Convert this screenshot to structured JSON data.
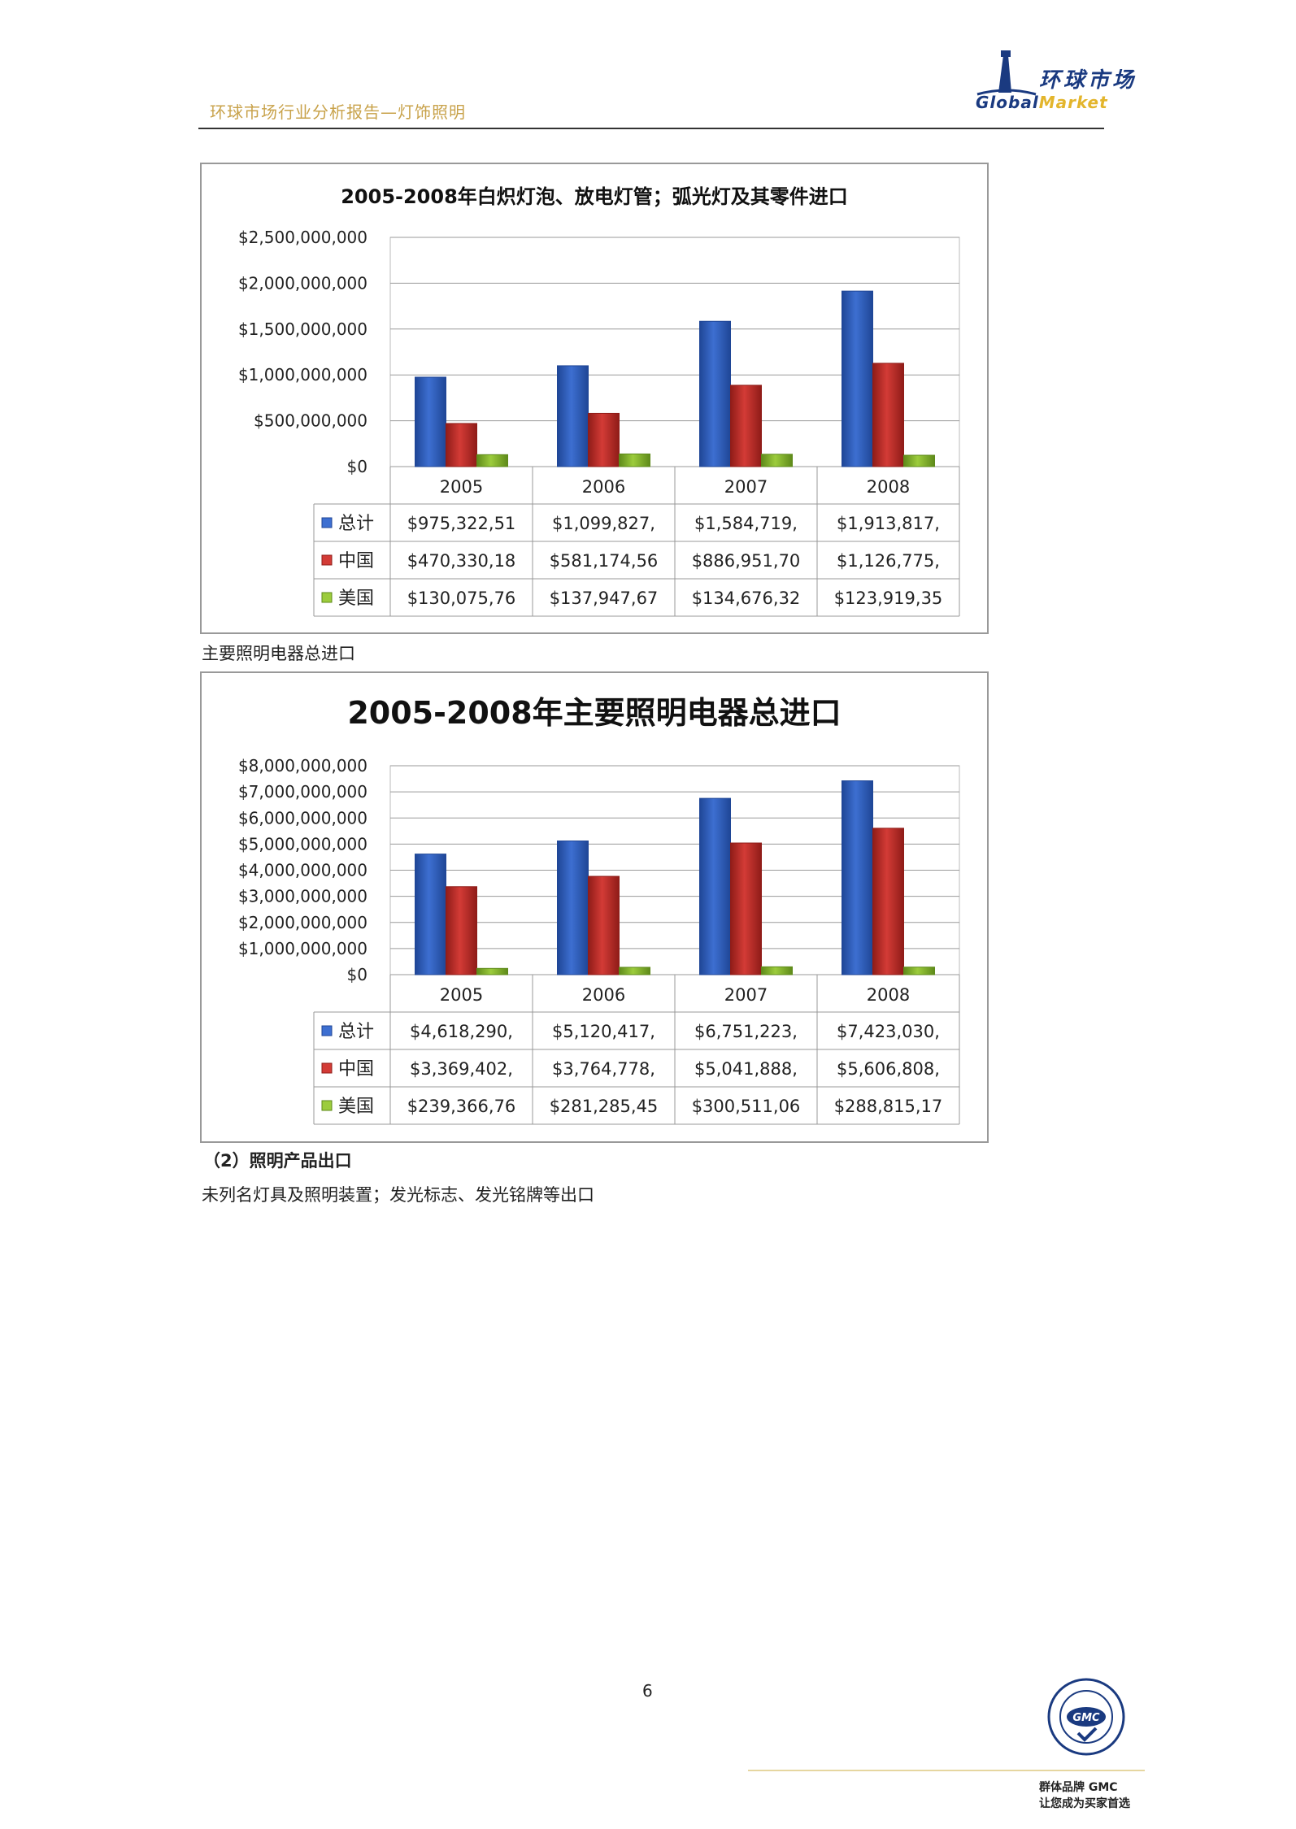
{
  "header": {
    "title": "环球市场行业分析报告—灯饰照明",
    "logo_cn": "环球市场",
    "logo_en_a": "Global",
    "logo_en_b": "Market"
  },
  "colors": {
    "total": "#3d6fd1",
    "china": "#d33b36",
    "usa": "#9ccc3c",
    "header": "#c8a24a"
  },
  "chart_data": [
    {
      "type": "bar",
      "title": "2005-2008年白炽灯泡、放电灯管；弧光灯及其零件进口",
      "categories": [
        "2005",
        "2006",
        "2007",
        "2008"
      ],
      "ylim": [
        0,
        2500000000
      ],
      "yticks": [
        0,
        500000000,
        1000000000,
        1500000000,
        2000000000,
        2500000000
      ],
      "ytick_labels": [
        "$0",
        "$500,000,000",
        "$1,000,000,000",
        "$1,500,000,000",
        "$2,000,000,000",
        "$2,500,000,000"
      ],
      "grid": true,
      "legend": "data-table",
      "series": [
        {
          "name": "总计",
          "values": [
            975322510,
            1099827000,
            1584719000,
            1913817000
          ],
          "labels": [
            "$975,322,51",
            "$1,099,827,",
            "$1,584,719,",
            "$1,913,817,"
          ]
        },
        {
          "name": "中国",
          "values": [
            470330180,
            581174560,
            886951700,
            1126775000
          ],
          "labels": [
            "$470,330,18",
            "$581,174,56",
            "$886,951,70",
            "$1,126,775,"
          ]
        },
        {
          "name": "美国",
          "values": [
            130075760,
            137947670,
            134676320,
            123919350
          ],
          "labels": [
            "$130,075,76",
            "$137,947,67",
            "$134,676,32",
            "$123,919,35"
          ]
        }
      ]
    },
    {
      "type": "bar",
      "title": "2005-2008年主要照明电器总进口",
      "categories": [
        "2005",
        "2006",
        "2007",
        "2008"
      ],
      "ylim": [
        0,
        8000000000
      ],
      "yticks": [
        0,
        1000000000,
        2000000000,
        3000000000,
        4000000000,
        5000000000,
        6000000000,
        7000000000,
        8000000000
      ],
      "ytick_labels": [
        "$0",
        "$1,000,000,000",
        "$2,000,000,000",
        "$3,000,000,000",
        "$4,000,000,000",
        "$5,000,000,000",
        "$6,000,000,000",
        "$7,000,000,000",
        "$8,000,000,000"
      ],
      "grid": true,
      "legend": "data-table",
      "series": [
        {
          "name": "总计",
          "values": [
            4618290000,
            5120417000,
            6751223000,
            7423030000
          ],
          "labels": [
            "$4,618,290,",
            "$5,120,417,",
            "$6,751,223,",
            "$7,423,030,"
          ]
        },
        {
          "name": "中国",
          "values": [
            3369402000,
            3764778000,
            5041888000,
            5606808000
          ],
          "labels": [
            "$3,369,402,",
            "$3,764,778,",
            "$5,041,888,",
            "$5,606,808,"
          ]
        },
        {
          "name": "美国",
          "values": [
            239366760,
            281285450,
            300511060,
            288815170
          ],
          "labels": [
            "$239,366,76",
            "$281,285,45",
            "$300,511,06",
            "$288,815,17"
          ]
        }
      ]
    }
  ],
  "text": {
    "caption1": "主要照明电器总进口",
    "section_heading": "（2）照明产品出口",
    "caption2": "未列名灯具及照明装置；发光标志、发光铭牌等出口"
  },
  "footer": {
    "page_number": "6",
    "seal_label": "GMC",
    "line1": "群体品牌 GMC",
    "line2": "让您成为买家首选"
  }
}
